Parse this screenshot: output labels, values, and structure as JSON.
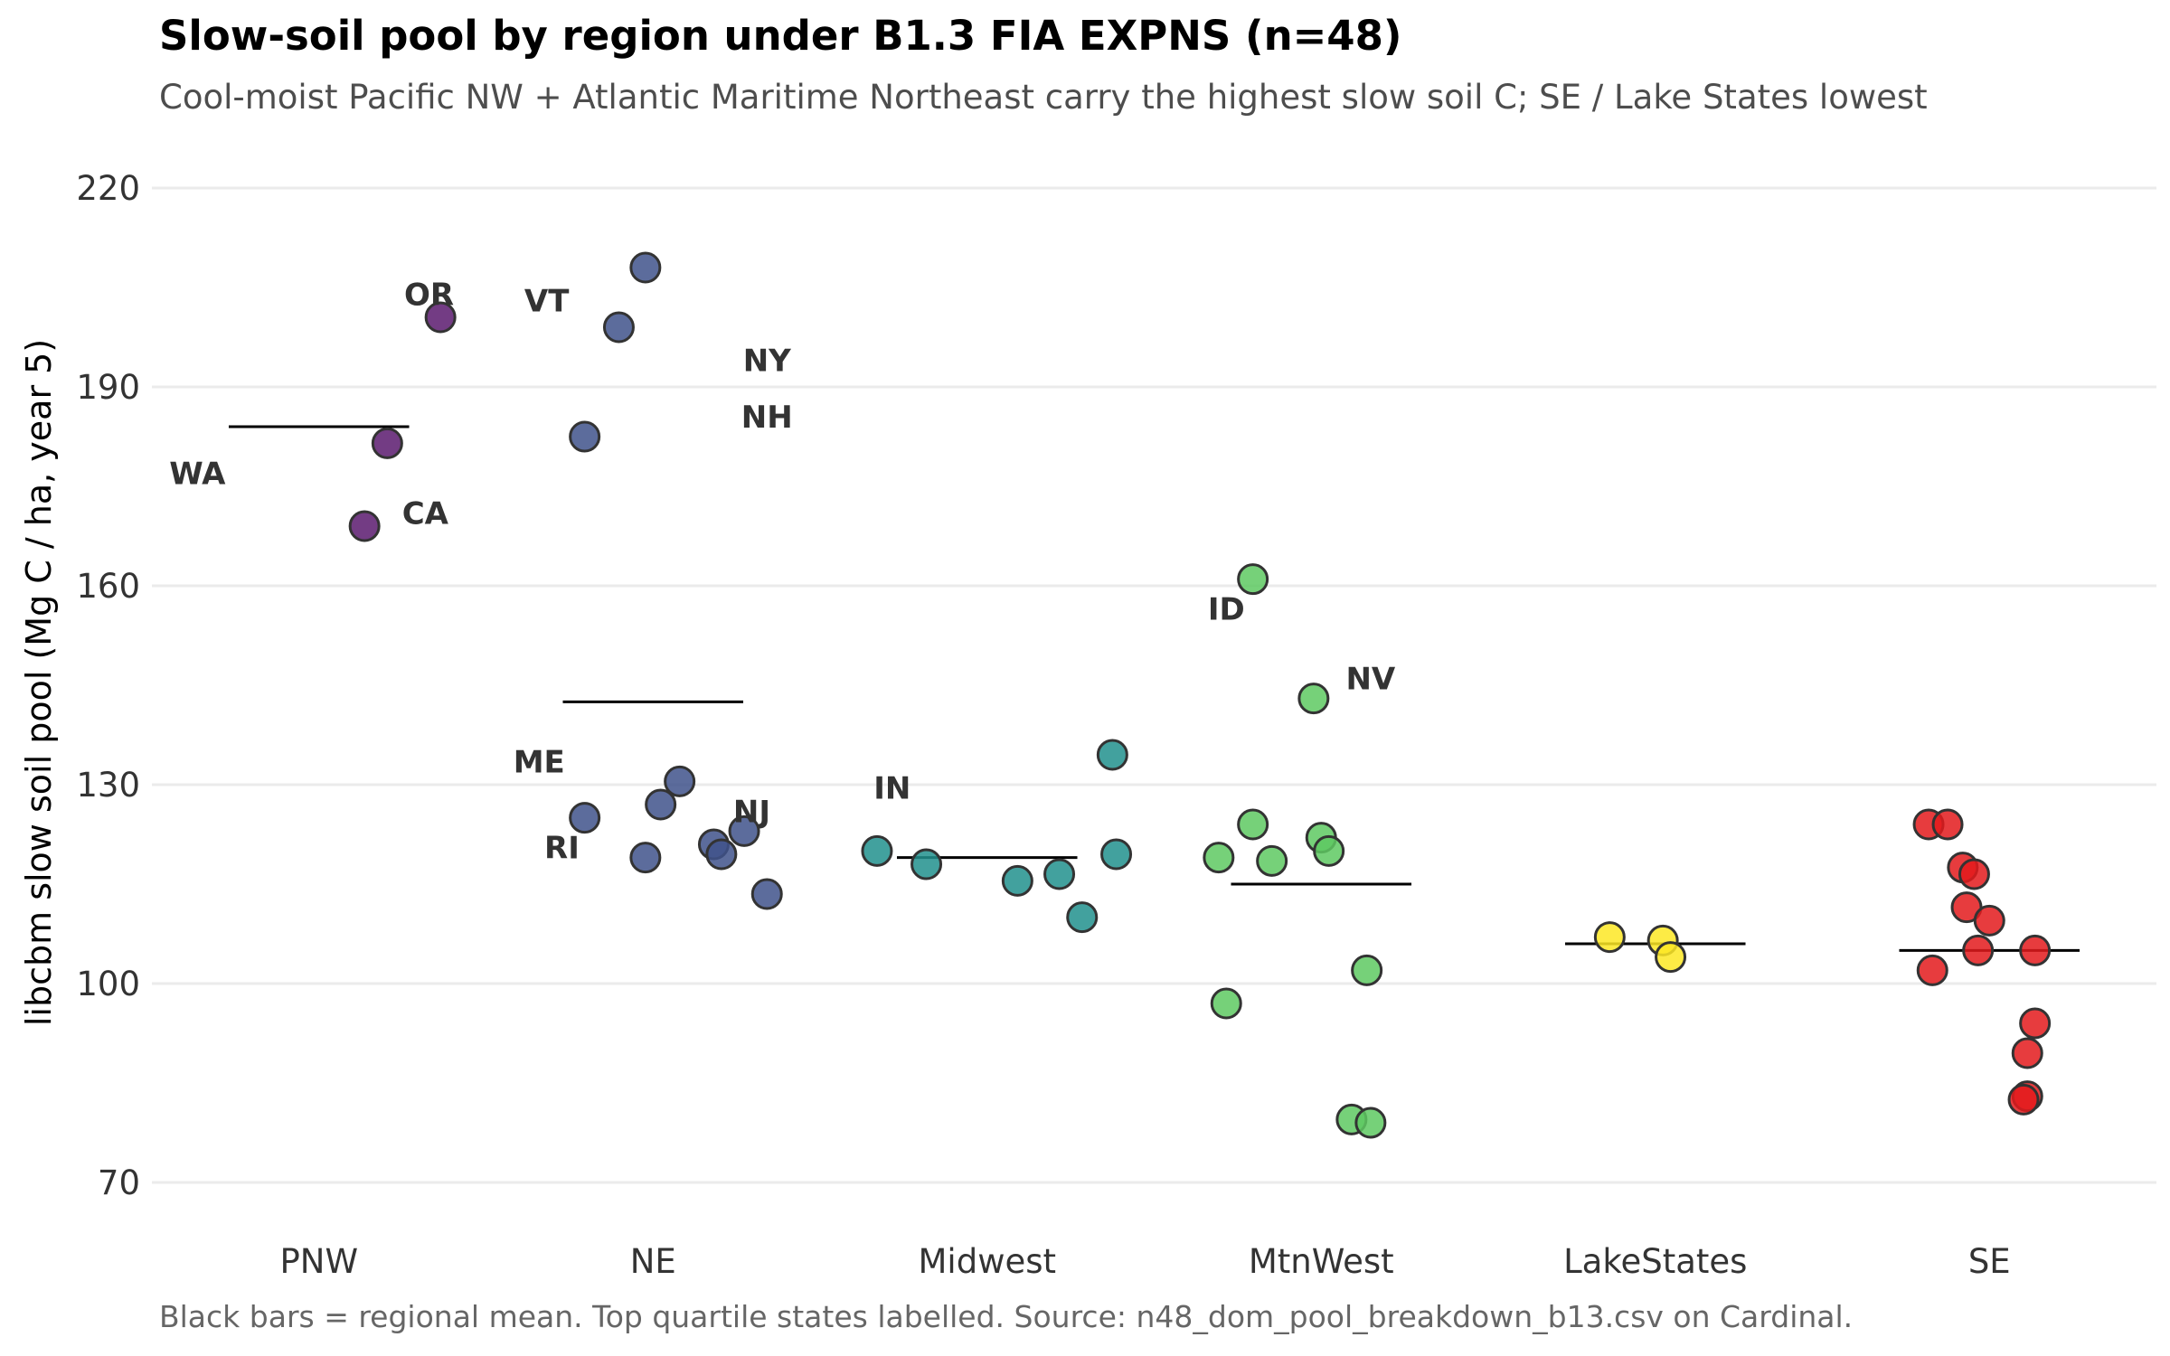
{
  "chart_data": {
    "type": "scatter",
    "title": "Slow-soil pool by region under B1.3 FIA EXPNS (n=48)",
    "subtitle": "Cool-moist Pacific NW + Atlantic Maritime Northeast carry the highest slow soil C; SE / Lake States lowest",
    "caption": "Black bars = regional mean. Top quartile states labelled. Source: n48_dom_pool_breakdown_b13.csv on Cardinal.",
    "xlabel": "",
    "ylabel": "libcbm slow soil pool (Mg C / ha, year 5)",
    "ylim": [
      62,
      223
    ],
    "yticks": [
      70,
      100,
      130,
      160,
      190,
      220
    ],
    "grid": true,
    "legend": "none",
    "categories": [
      "PNW",
      "NE",
      "Midwest",
      "MtnWest",
      "LakeStates",
      "SE"
    ],
    "series": [
      {
        "category": "PNW",
        "color": "#5b1a6e",
        "mean": 184,
        "points": [
          {
            "y": 200.5,
            "jitter": 0.32,
            "label": "OR"
          },
          {
            "y": 181.5,
            "jitter": 0.18
          },
          {
            "y": 169,
            "jitter": 0.12
          }
        ],
        "labels": [
          {
            "text": "OR",
            "jitter": 0.29,
            "y": 204
          },
          {
            "text": "WA",
            "jitter": -0.32,
            "y": 177
          },
          {
            "text": "CA",
            "jitter": 0.28,
            "y": 171
          }
        ]
      },
      {
        "category": "NE",
        "color": "#3f528b",
        "mean": 142.5,
        "points": [
          {
            "y": 208,
            "jitter": -0.02
          },
          {
            "y": 199,
            "jitter": -0.09
          },
          {
            "y": 182.5,
            "jitter": -0.18
          },
          {
            "y": 130.5,
            "jitter": 0.07
          },
          {
            "y": 127,
            "jitter": 0.02
          },
          {
            "y": 125,
            "jitter": -0.18
          },
          {
            "y": 123,
            "jitter": 0.24
          },
          {
            "y": 121,
            "jitter": 0.16
          },
          {
            "y": 119.5,
            "jitter": 0.18
          },
          {
            "y": 119,
            "jitter": -0.02
          },
          {
            "y": 113.5,
            "jitter": 0.3
          }
        ],
        "labels": [
          {
            "text": "VT",
            "jitter": -0.28,
            "y": 203
          },
          {
            "text": "NY",
            "jitter": 0.3,
            "y": 194
          },
          {
            "text": "NH",
            "jitter": 0.3,
            "y": 185.5
          },
          {
            "text": "ME",
            "jitter": -0.3,
            "y": 133.5
          },
          {
            "text": "NJ",
            "jitter": 0.26,
            "y": 126
          },
          {
            "text": "RI",
            "jitter": -0.24,
            "y": 120.5
          }
        ]
      },
      {
        "category": "Midwest",
        "color": "#21908d",
        "mean": 119,
        "points": [
          {
            "y": 134.5,
            "jitter": 0.33
          },
          {
            "y": 120,
            "jitter": -0.29
          },
          {
            "y": 119.5,
            "jitter": 0.34
          },
          {
            "y": 118,
            "jitter": -0.16
          },
          {
            "y": 116.5,
            "jitter": 0.19
          },
          {
            "y": 115.5,
            "jitter": 0.08
          },
          {
            "y": 110,
            "jitter": 0.25
          }
        ],
        "labels": [
          {
            "text": "IN",
            "jitter": -0.25,
            "y": 129.5
          }
        ]
      },
      {
        "category": "MtnWest",
        "color": "#5ec962",
        "mean": 115,
        "points": [
          {
            "y": 161,
            "jitter": -0.18
          },
          {
            "y": 143,
            "jitter": -0.02
          },
          {
            "y": 124,
            "jitter": -0.18
          },
          {
            "y": 122,
            "jitter": 0.0
          },
          {
            "y": 120,
            "jitter": 0.02
          },
          {
            "y": 119,
            "jitter": -0.27
          },
          {
            "y": 118.5,
            "jitter": -0.13
          },
          {
            "y": 102,
            "jitter": 0.12
          },
          {
            "y": 97,
            "jitter": -0.25
          },
          {
            "y": 79.5,
            "jitter": 0.08
          },
          {
            "y": 79,
            "jitter": 0.13
          }
        ],
        "labels": [
          {
            "text": "ID",
            "jitter": -0.25,
            "y": 156.5
          },
          {
            "text": "NV",
            "jitter": 0.13,
            "y": 146
          }
        ]
      },
      {
        "category": "LakeStates",
        "color": "#fde725",
        "mean": 106,
        "points": [
          {
            "y": 107,
            "jitter": -0.12
          },
          {
            "y": 106.5,
            "jitter": 0.02
          },
          {
            "y": 104,
            "jitter": 0.04
          }
        ],
        "labels": []
      },
      {
        "category": "SE",
        "color": "#e31a1c",
        "mean": 105,
        "points": [
          {
            "y": 124,
            "jitter": -0.16
          },
          {
            "y": 124,
            "jitter": -0.11
          },
          {
            "y": 117.5,
            "jitter": -0.07
          },
          {
            "y": 116.5,
            "jitter": -0.04
          },
          {
            "y": 111.5,
            "jitter": -0.06
          },
          {
            "y": 109.5,
            "jitter": 0.0
          },
          {
            "y": 105,
            "jitter": 0.12
          },
          {
            "y": 105,
            "jitter": -0.03
          },
          {
            "y": 102,
            "jitter": -0.15
          },
          {
            "y": 94,
            "jitter": 0.12
          },
          {
            "y": 89.5,
            "jitter": 0.1
          },
          {
            "y": 83,
            "jitter": 0.1
          },
          {
            "y": 82.5,
            "jitter": 0.09
          }
        ],
        "labels": []
      }
    ]
  }
}
